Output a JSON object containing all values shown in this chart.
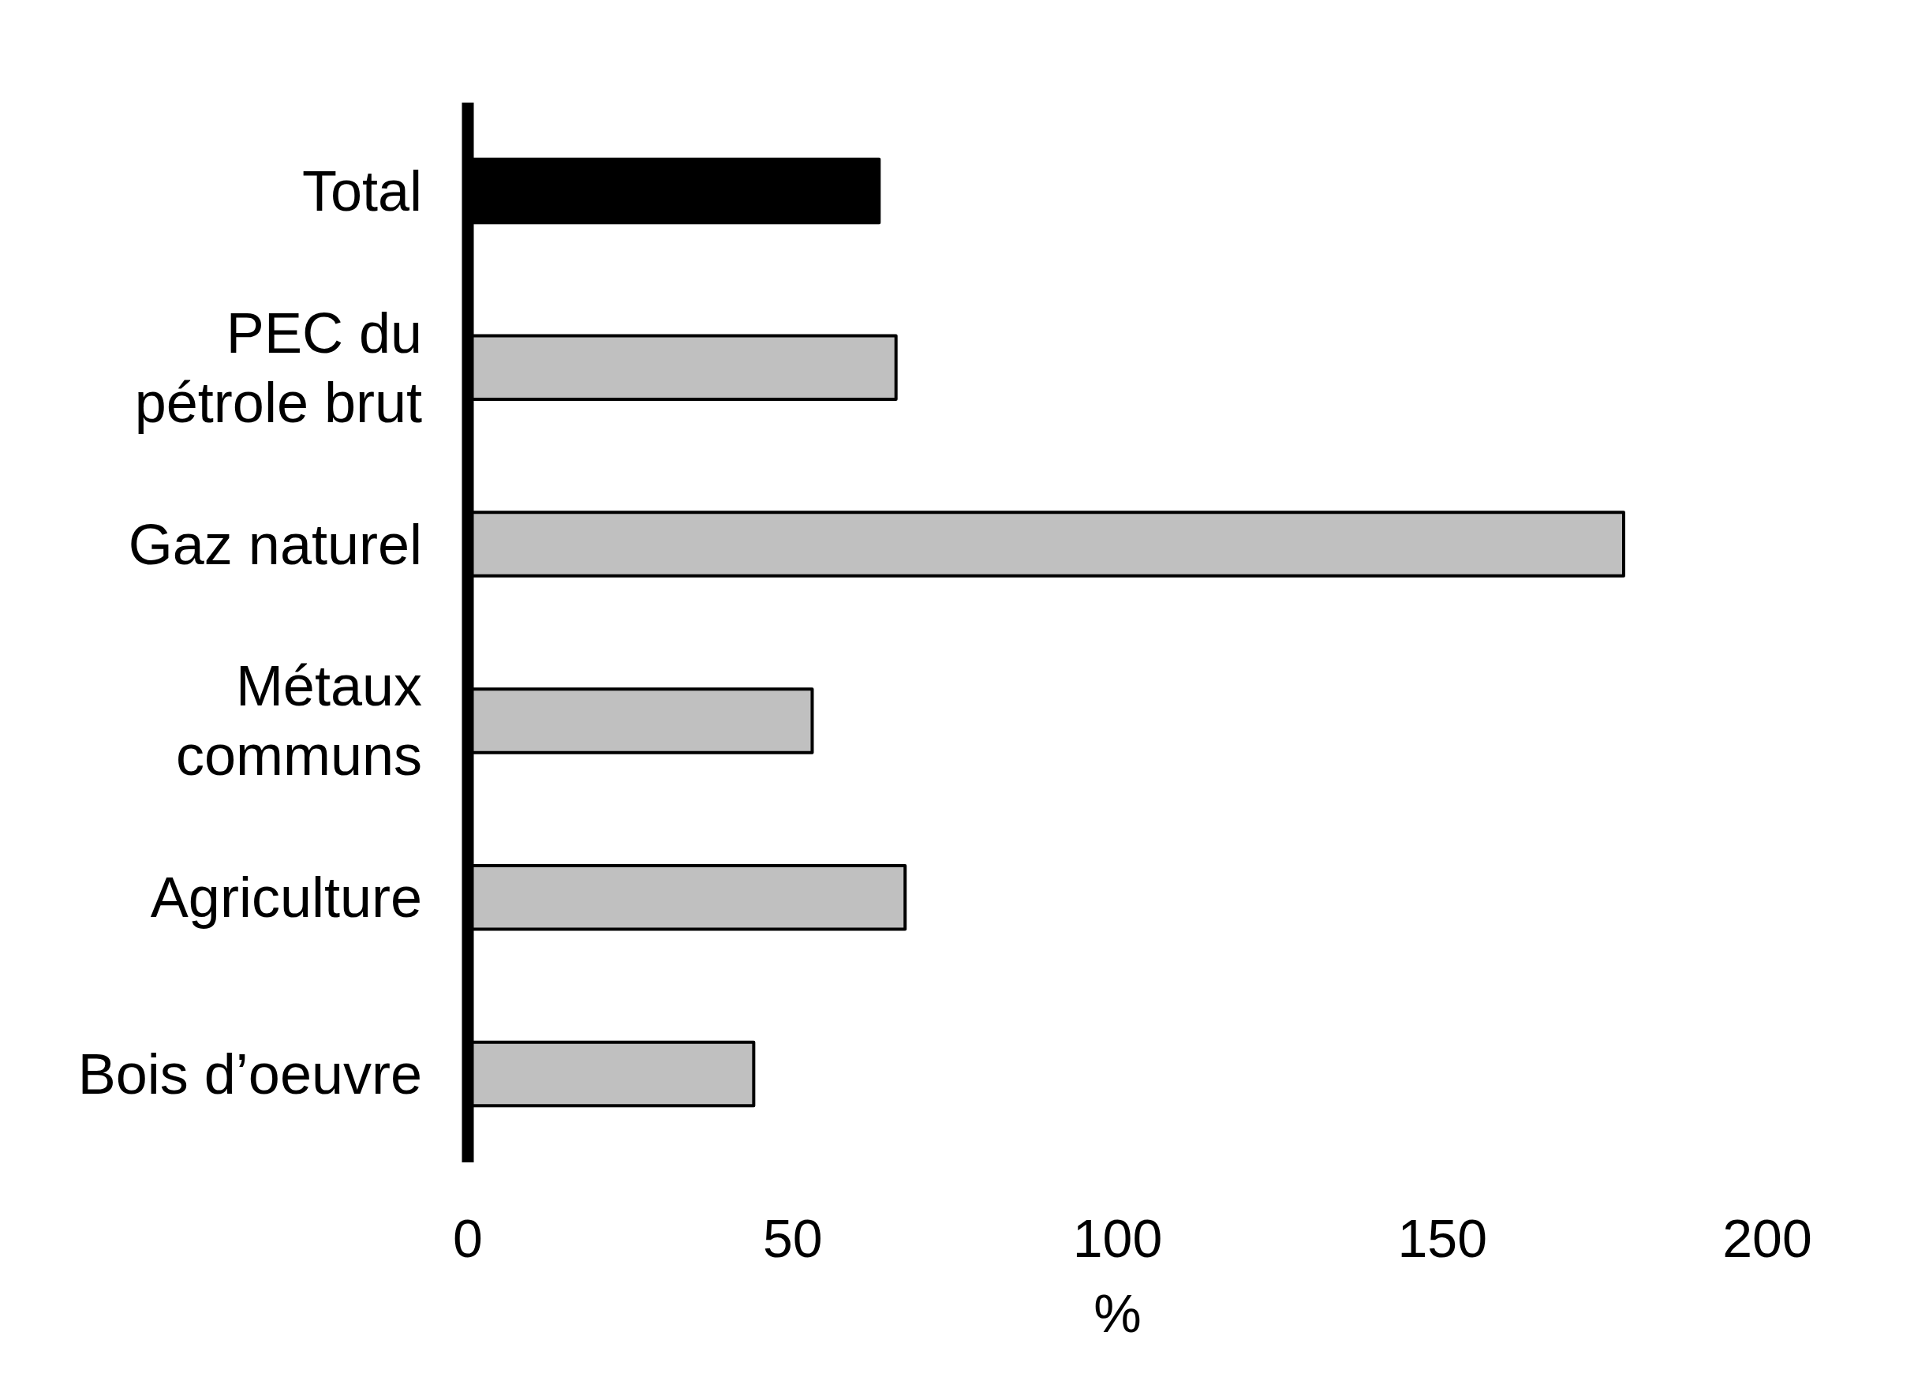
{
  "chart_data": {
    "type": "bar",
    "orientation": "horizontal",
    "xlabel": "%",
    "categories": [
      "Total",
      "PEC du pétrole brut",
      "Gaz naturel",
      "Métaux communs",
      "Agriculture",
      "Bois d’oeuvre"
    ],
    "values": [
      63.3,
      65.9,
      177.9,
      53.0,
      67.3,
      44.0
    ],
    "colors": [
      "#000000",
      "#c0c0c0",
      "#c0c0c0",
      "#c0c0c0",
      "#c0c0c0",
      "#c0c0c0"
    ],
    "xlim": [
      0,
      200
    ],
    "xticks": [
      0,
      50,
      100,
      150,
      200
    ]
  }
}
